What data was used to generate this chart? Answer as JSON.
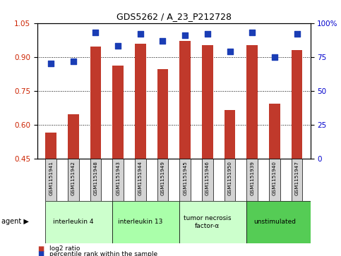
{
  "title": "GDS5262 / A_23_P212728",
  "samples": [
    "GSM1151941",
    "GSM1151942",
    "GSM1151948",
    "GSM1151943",
    "GSM1151944",
    "GSM1151949",
    "GSM1151945",
    "GSM1151946",
    "GSM1151950",
    "GSM1151939",
    "GSM1151940",
    "GSM1151947"
  ],
  "log2_ratio": [
    0.565,
    0.648,
    0.945,
    0.862,
    0.96,
    0.845,
    0.97,
    0.952,
    0.665,
    0.952,
    0.695,
    0.93
  ],
  "percentile_rank": [
    70,
    72,
    93,
    83,
    92,
    87,
    91,
    92,
    79,
    93,
    75,
    92
  ],
  "bar_bottom": 0.45,
  "ylim_left": [
    0.45,
    1.05
  ],
  "ylim_right": [
    0,
    100
  ],
  "yticks_left": [
    0.45,
    0.6,
    0.75,
    0.9,
    1.05
  ],
  "ytick_labels_left": [
    "0.45",
    "0.60",
    "0.75",
    "0.90",
    "1.05"
  ],
  "yticks_right": [
    0,
    25,
    50,
    75,
    100
  ],
  "ytick_labels_right": [
    "0",
    "25",
    "50",
    "75",
    "100%"
  ],
  "bar_color": "#c0392b",
  "dot_color": "#1a3db5",
  "agent_groups": [
    {
      "label": "interleukin 4",
      "start": 0,
      "end": 3,
      "color": "#ccffcc"
    },
    {
      "label": "interleukin 13",
      "start": 3,
      "end": 6,
      "color": "#aaffaa"
    },
    {
      "label": "tumor necrosis\nfactor-α",
      "start": 6,
      "end": 9,
      "color": "#ccffcc"
    },
    {
      "label": "unstimulated",
      "start": 9,
      "end": 12,
      "color": "#55cc55"
    }
  ],
  "bar_width": 0.5,
  "dot_size": 35,
  "grid_yticks": [
    0.6,
    0.75,
    0.9
  ]
}
